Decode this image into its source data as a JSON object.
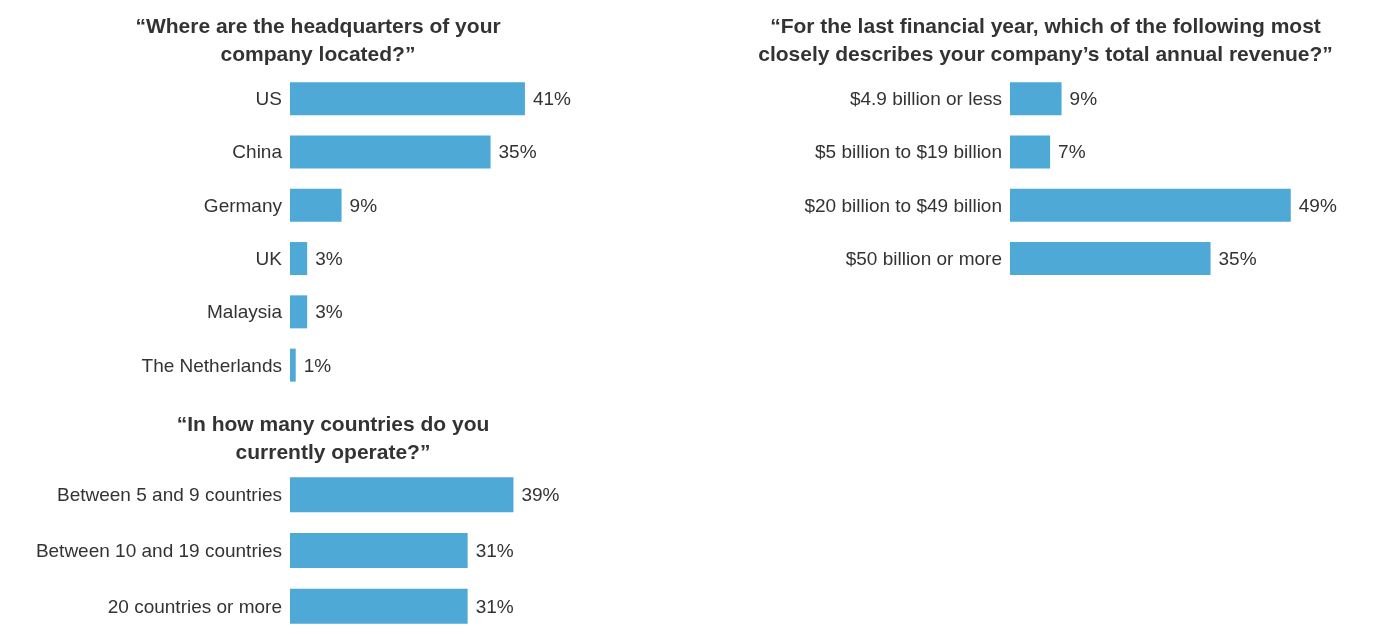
{
  "chart_data": [
    {
      "type": "bar",
      "orientation": "horizontal",
      "title": "“Where are the headquarters of your\ncompany located?”",
      "categories": [
        "US",
        "China",
        "Germany",
        "UK",
        "Malaysia",
        "The Netherlands"
      ],
      "values": [
        41,
        35,
        9,
        3,
        3,
        1
      ],
      "value_labels": [
        "41%",
        "35%",
        "9%",
        "3%",
        "3%",
        "1%"
      ],
      "color": "#4ea9d7"
    },
    {
      "type": "bar",
      "orientation": "horizontal",
      "title": "“For the last financial year, which of the following most\nclosely describes your company’s total annual revenue?”",
      "categories": [
        "$4.9 billion or less",
        "$5 billion to $19 billion",
        "$20 billion to $49 billion",
        "$50 billion or more"
      ],
      "values": [
        9,
        7,
        49,
        35
      ],
      "value_labels": [
        "9%",
        "7%",
        "49%",
        "35%"
      ],
      "color": "#4ea9d7"
    },
    {
      "type": "bar",
      "orientation": "horizontal",
      "title": "“In how many countries do you\ncurrently operate?”",
      "categories": [
        "Between 5 and 9 countries",
        "Between 10 and 19 countries",
        "20 countries or more"
      ],
      "values": [
        39,
        31,
        31
      ],
      "value_labels": [
        "39%",
        "31%",
        "31%"
      ],
      "color": "#4ea9d7"
    }
  ]
}
